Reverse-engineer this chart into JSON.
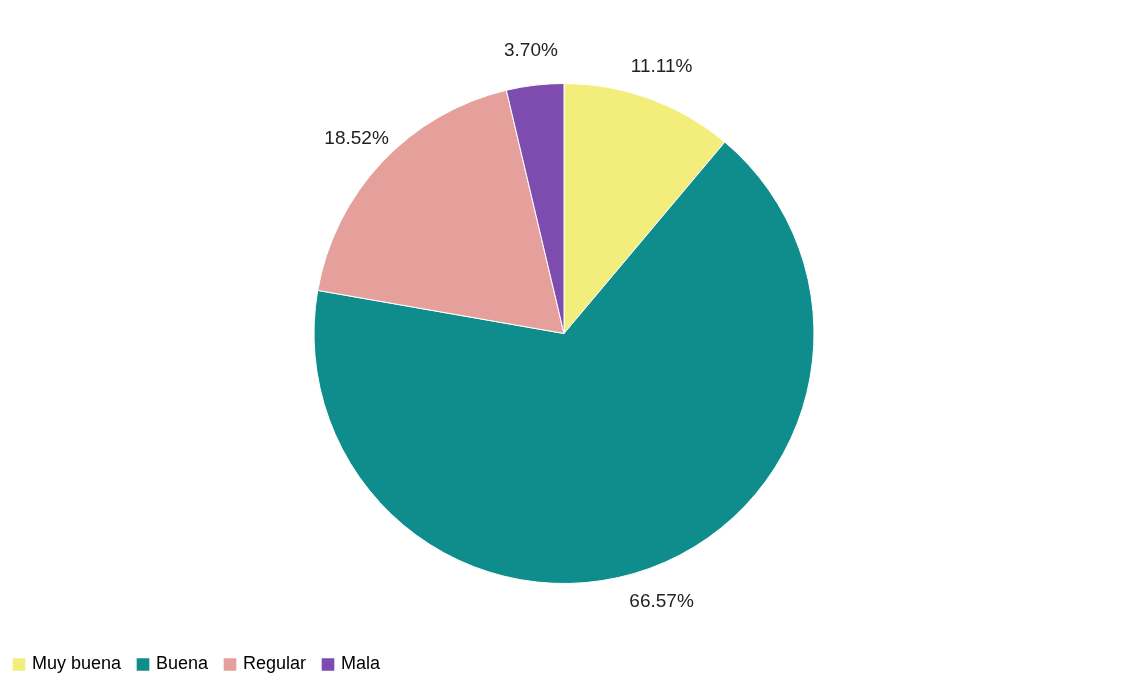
{
  "chart_data": {
    "type": "pie",
    "categories": [
      "Muy buena",
      "Buena",
      "Regular",
      "Mala"
    ],
    "values": [
      11.11,
      66.57,
      18.52,
      3.7
    ],
    "colors": [
      "#f3ee7c",
      "#0f8c8c",
      "#e5a09c",
      "#7e4cae"
    ],
    "value_labels": [
      "11.11%",
      "66.57%",
      "18.52%",
      "3.70%"
    ],
    "legend": "bottom"
  }
}
